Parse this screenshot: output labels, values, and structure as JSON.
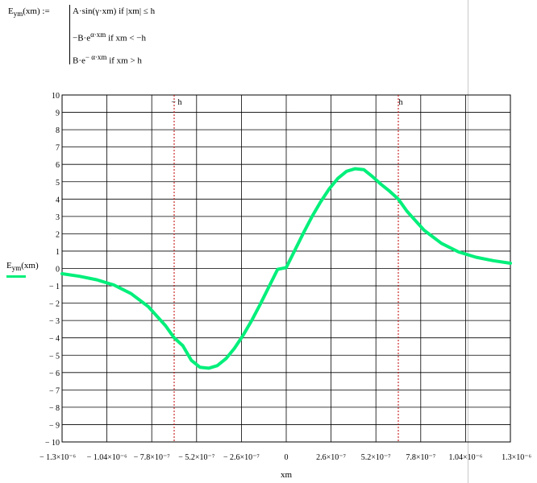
{
  "formula": {
    "lhs_name": "E",
    "lhs_sub": "ym",
    "lhs_arg": "(xm) :=",
    "case1": "A·sin(γ·xm)   if  |xm| ≤ h",
    "case2_pre": "−B·e",
    "case2_exp": "α·xm",
    "case2_cond": "  if  xm < −h",
    "case3_pre": "B·e",
    "case3_exp": "− α·xm",
    "case3_cond": "  if  xm > h"
  },
  "legend": {
    "name": "E",
    "sub": "ym",
    "arg": "(xm)"
  },
  "colors": {
    "curve": "#00ef7a",
    "marker": "#c00000",
    "grid": "#000000"
  },
  "chart_data": {
    "type": "line",
    "xlabel": "xm",
    "ylabel": "",
    "xlim": [
      -1.3e-06,
      1.3e-06
    ],
    "ylim": [
      -10,
      10
    ],
    "grid": true,
    "x_ticks": [
      -1.3e-06,
      -1.04e-06,
      -7.8e-07,
      -5.2e-07,
      -2.6e-07,
      0,
      2.6e-07,
      5.2e-07,
      7.8e-07,
      1.04e-06,
      1.3e-06
    ],
    "x_tick_labels": [
      "− 1.3×10⁻⁶",
      "− 1.04×10⁻⁶",
      "− 7.8×10⁻⁷",
      "− 5.2×10⁻⁷",
      "− 2.6×10⁻⁷",
      "0",
      "2.6×10⁻⁷",
      "5.2×10⁻⁷",
      "7.8×10⁻⁷",
      "1.04×10⁻⁶",
      "1.3×10⁻⁶"
    ],
    "y_ticks": [
      -10,
      -9,
      -8,
      -7,
      -6,
      -5,
      -4,
      -3,
      -2,
      -1,
      0,
      1,
      2,
      3,
      4,
      5,
      6,
      7,
      8,
      9,
      10
    ],
    "y_tick_labels": [
      "− 10",
      "− 9",
      "− 8",
      "− 7",
      "− 6",
      "− 5",
      "− 4",
      "− 3",
      "− 2",
      "− 1",
      "0",
      "1",
      "2",
      "3",
      "4",
      "5",
      "6",
      "7",
      "8",
      "9",
      "10"
    ],
    "markers": [
      {
        "label": "− h",
        "x": -6.5e-07
      },
      {
        "label": "h",
        "x": 6.5e-07
      }
    ],
    "series": [
      {
        "name": "Eym(xm)",
        "x": [
          -1.3e-06,
          -1.2e-06,
          -1.1e-06,
          -1e-06,
          -9e-07,
          -8e-07,
          -7e-07,
          -6.5e-07,
          -6e-07,
          -5.5e-07,
          -5e-07,
          -4.5e-07,
          -4e-07,
          -3.5e-07,
          -3e-07,
          -2.5e-07,
          -2e-07,
          -1.5e-07,
          -1e-07,
          -5e-08,
          0,
          5e-08,
          1e-07,
          1.5e-07,
          2e-07,
          2.5e-07,
          3e-07,
          3.5e-07,
          4e-07,
          4.5e-07,
          5e-07,
          5.5e-07,
          6e-07,
          6.5e-07,
          7e-07,
          8e-07,
          9e-07,
          1e-06,
          1.1e-06,
          1.2e-06,
          1.3e-06
        ],
        "y": [
          -0.3,
          -0.45,
          -0.65,
          -0.95,
          -1.45,
          -2.2,
          -3.3,
          -4.0,
          -4.45,
          -5.3,
          -5.7,
          -5.75,
          -5.6,
          -5.2,
          -4.6,
          -3.85,
          -3.0,
          -2.05,
          -1.05,
          -0.05,
          0.05,
          1.05,
          2.05,
          3.0,
          3.85,
          4.6,
          5.2,
          5.6,
          5.75,
          5.7,
          5.3,
          4.85,
          4.45,
          4.0,
          3.3,
          2.2,
          1.45,
          0.95,
          0.65,
          0.45,
          0.3
        ]
      }
    ]
  }
}
